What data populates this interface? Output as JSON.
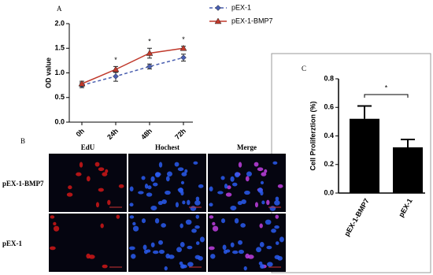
{
  "chart_data": [
    {
      "type": "line",
      "panel_label": "A",
      "y_label": "OD value",
      "categories": [
        "0h",
        "24h",
        "48h",
        "72h"
      ],
      "ylim": [
        0,
        2.0
      ],
      "yticks": [
        {
          "value": 0,
          "label": "0.0"
        },
        {
          "value": 0.5,
          "label": "0.5"
        },
        {
          "value": 1.0,
          "label": "1.0"
        },
        {
          "value": 1.5,
          "label": "1.5"
        },
        {
          "value": 2.0,
          "label": "2.0"
        }
      ],
      "series": [
        {
          "name": "pEX-1",
          "color": "#4a5fb0",
          "dashed": true,
          "marker": "diamond",
          "values": [
            0.75,
            0.93,
            1.13,
            1.31
          ],
          "errors": [
            0.05,
            0.1,
            0.05,
            0.07
          ]
        },
        {
          "name": "pEX-1-BMP7",
          "color": "#c0392b",
          "dashed": false,
          "marker": "triangle",
          "values": [
            0.78,
            1.07,
            1.4,
            1.5
          ],
          "errors": [
            0.05,
            0.06,
            0.1,
            0.04
          ]
        }
      ],
      "annotations": [
        {
          "text": "*",
          "x": "24h"
        },
        {
          "text": "*",
          "x": "48h"
        },
        {
          "text": "*",
          "x": "72h"
        }
      ]
    },
    {
      "type": "bar",
      "panel_label": "C",
      "y_label": "Cell Proliferztion (%)",
      "categories": [
        "pEX-1-BMP7",
        "pEX-1"
      ],
      "values": [
        0.52,
        0.32
      ],
      "errors": [
        0.09,
        0.055
      ],
      "color": "#000000",
      "ylim": [
        0,
        0.8
      ],
      "yticks": [
        {
          "value": 0,
          "label": "0.0"
        },
        {
          "value": 0.2,
          "label": "0.2"
        },
        {
          "value": 0.4,
          "label": "0.4"
        },
        {
          "value": 0.6,
          "label": "0.6"
        },
        {
          "value": 0.8,
          "label": "0.8"
        }
      ],
      "annotations": [
        {
          "text": "*"
        }
      ]
    }
  ],
  "panel_b": {
    "panel_label": "B",
    "columns": [
      "EdU",
      "Hochest",
      "Merge"
    ],
    "rows": [
      "pEX-1-BMP7",
      "pEX-1"
    ]
  }
}
